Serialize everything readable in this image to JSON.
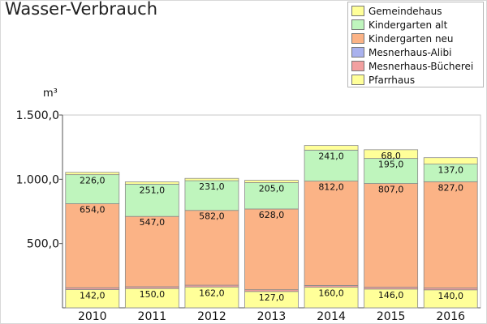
{
  "chart_data": {
    "type": "bar",
    "stacked": true,
    "title": "Wasser-Verbrauch",
    "ylabel": "m³",
    "xlabel": "",
    "ylim": [
      0,
      1500
    ],
    "yticks": [
      500,
      1000,
      1500
    ],
    "ytick_labels": [
      "500,0",
      "1.000,0",
      "1.500,0"
    ],
    "categories": [
      "2010",
      "2011",
      "2012",
      "2013",
      "2014",
      "2015",
      "2016"
    ],
    "series": [
      {
        "name": "Pfarrhaus",
        "color": "#ffff99",
        "values": [
          142,
          150,
          162,
          127,
          160,
          146,
          140
        ],
        "labels": [
          "142,0",
          "150,0",
          "162,0",
          "127,0",
          "160,0",
          "146,0",
          "140,0"
        ]
      },
      {
        "name": "Mesnerhaus-Bücherei",
        "color": "#f2a0a0",
        "values": [
          14,
          14,
          14,
          14,
          14,
          14,
          14
        ],
        "labels": []
      },
      {
        "name": "Mesnerhaus-Alibi",
        "color": "#aab2ee",
        "values": [
          0,
          0,
          0,
          0,
          0,
          0,
          0
        ],
        "labels": []
      },
      {
        "name": "Kindergarten neu",
        "color": "#fbb386",
        "values": [
          654,
          547,
          582,
          628,
          812,
          807,
          827
        ],
        "labels": [
          "654,0",
          "547,0",
          "582,0",
          "628,0",
          "812,0",
          "807,0",
          "827,0"
        ]
      },
      {
        "name": "Kindergarten alt",
        "color": "#bff5bd",
        "values": [
          226,
          251,
          231,
          205,
          241,
          195,
          137
        ],
        "labels": [
          "226,0",
          "251,0",
          "231,0",
          "205,0",
          "241,0",
          "195,0",
          "137,0"
        ]
      },
      {
        "name": "Gemeindehaus",
        "color": "#ffff99",
        "values": [
          18,
          18,
          18,
          18,
          36,
          68,
          50
        ],
        "labels": [
          "",
          "",
          "",
          "",
          "",
          "68,0",
          ""
        ]
      }
    ],
    "legend_order": [
      "Gemeindehaus",
      "Kindergarten alt",
      "Kindergarten neu",
      "Mesnerhaus-Alibi",
      "Mesnerhaus-Bücherei",
      "Pfarrhaus"
    ],
    "legend_position": "top-right",
    "grid": false
  }
}
